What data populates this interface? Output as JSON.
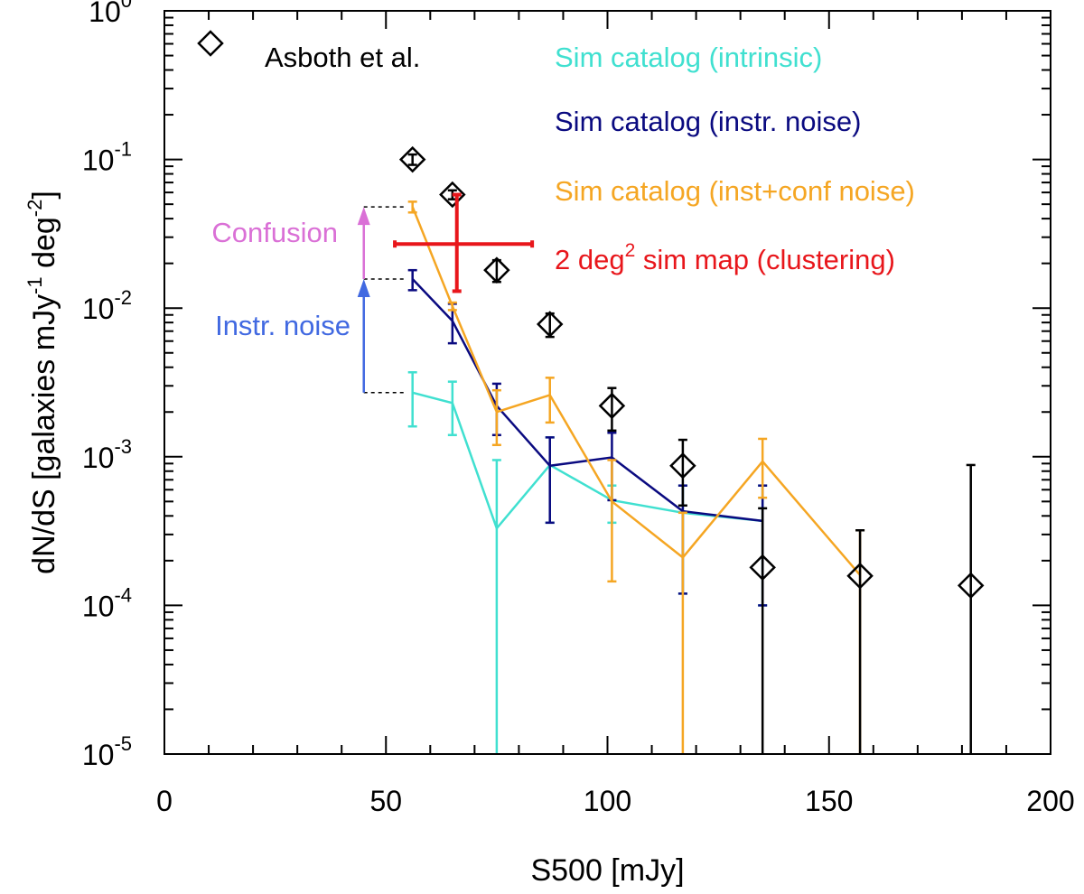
{
  "chart_data": {
    "type": "line",
    "xlabel": "S500 [mJy]",
    "ylabel": {
      "main": "dN/dS [galaxies mJy",
      "exp1": "-1",
      "mid": " deg",
      "exp2": "-2",
      "end": "]"
    },
    "xlim": [
      0,
      200
    ],
    "ylim": [
      1e-05,
      1
    ],
    "yscale": "log",
    "xticks": [
      0,
      50,
      100,
      150,
      200
    ],
    "xtick_labels": [
      "0",
      "50",
      "100",
      "150",
      "200"
    ],
    "yticks": [
      {
        "value": 1,
        "base": "10",
        "exp": "0"
      },
      {
        "value": 0.1,
        "base": "10",
        "exp": "-1"
      },
      {
        "value": 0.01,
        "base": "10",
        "exp": "-2"
      },
      {
        "value": 0.001,
        "base": "10",
        "exp": "-3"
      },
      {
        "value": 0.0001,
        "base": "10",
        "exp": "-4"
      },
      {
        "value": 1e-05,
        "base": "10",
        "exp": "-5"
      }
    ],
    "series": [
      {
        "name": "Sim catalog (intrinsic)",
        "color": "#40E0D0",
        "points": [
          {
            "x": 56,
            "y": 0.0027,
            "lo": 0.0016,
            "hi": 0.0037
          },
          {
            "x": 65,
            "y": 0.0023,
            "lo": 0.0014,
            "hi": 0.0032
          },
          {
            "x": 75,
            "y": 0.00033,
            "lo": 1e-05,
            "hi": 0.00095
          },
          {
            "x": 87,
            "y": 0.00088,
            "lo": 0.00036,
            "hi": 0.00135
          },
          {
            "x": 101,
            "y": 0.00051,
            "lo": 0.00036,
            "hi": 0.00064
          },
          {
            "x": 117,
            "y": 0.00042,
            "lo": 0.00012,
            "hi": 0.00064
          },
          {
            "x": 135,
            "y": 0.00037,
            "lo": 0.0001,
            "hi": 0.00064
          }
        ]
      },
      {
        "name": "Sim catalog (instr. noise)",
        "color": "#0A0A80",
        "points": [
          {
            "x": 56,
            "y": 0.0157,
            "lo": 0.0132,
            "hi": 0.018
          },
          {
            "x": 65,
            "y": 0.0082,
            "lo": 0.0058,
            "hi": 0.0107
          },
          {
            "x": 75,
            "y": 0.0022,
            "lo": 0.0014,
            "hi": 0.0031
          },
          {
            "x": 87,
            "y": 0.00087,
            "lo": 0.00036,
            "hi": 0.00135
          },
          {
            "x": 101,
            "y": 0.00099,
            "lo": 0.00051,
            "hi": 0.00145
          },
          {
            "x": 117,
            "y": 0.00043,
            "lo": 0.00012,
            "hi": 0.00064
          },
          {
            "x": 135,
            "y": 0.00037,
            "lo": 0.0001,
            "hi": 0.00064
          }
        ]
      },
      {
        "name": "Sim catalog (inst+conf noise)",
        "color": "#F5A623",
        "points": [
          {
            "x": 56,
            "y": 0.048,
            "lo": 0.044,
            "hi": 0.052
          },
          {
            "x": 65,
            "y": 0.0103,
            "lo": 0.0097,
            "hi": 0.0109
          },
          {
            "x": 75,
            "y": 0.002,
            "lo": 0.0012,
            "hi": 0.0028
          },
          {
            "x": 87,
            "y": 0.0026,
            "lo": 0.0017,
            "hi": 0.0034
          },
          {
            "x": 101,
            "y": 0.0005,
            "lo": 0.000145,
            "hi": 0.00095
          },
          {
            "x": 117,
            "y": 0.00021,
            "lo": 1e-05,
            "hi": 0.00042
          },
          {
            "x": 135,
            "y": 0.00093,
            "lo": 0.00053,
            "hi": 0.00132
          },
          {
            "x": 157,
            "y": 0.00016,
            "lo": 1e-05,
            "hi": 0.00032
          }
        ]
      },
      {
        "name": "Asboth et al.",
        "color": "#000000",
        "marker": "diamond",
        "points": [
          {
            "x": 56,
            "y": 0.1,
            "lo": 0.092,
            "hi": 0.108
          },
          {
            "x": 65,
            "y": 0.058,
            "lo": 0.054,
            "hi": 0.062
          },
          {
            "x": 75,
            "y": 0.018,
            "lo": 0.015,
            "hi": 0.021
          },
          {
            "x": 87,
            "y": 0.0078,
            "lo": 0.0064,
            "hi": 0.0092
          },
          {
            "x": 101,
            "y": 0.0022,
            "lo": 0.0015,
            "hi": 0.0029
          },
          {
            "x": 117,
            "y": 0.00087,
            "lo": 0.00047,
            "hi": 0.0013
          },
          {
            "x": 135,
            "y": 0.00018,
            "lo": 1e-05,
            "hi": 0.00045
          },
          {
            "x": 157,
            "y": 0.000158,
            "lo": 1e-05,
            "hi": 0.00032
          },
          {
            "x": 182,
            "y": 0.000136,
            "lo": 1e-05,
            "hi": 0.00088
          }
        ]
      },
      {
        "name": "2 deg² sim map (clustering)",
        "color": "#E8161B",
        "points": [
          {
            "x": 66,
            "y": 0.027,
            "xlo": 52,
            "xhi": 83,
            "lo": 0.013,
            "hi": 0.058
          }
        ]
      }
    ],
    "legend": {
      "asboth": "Asboth et al.",
      "intrinsic": "Sim catalog (intrinsic)",
      "instr": "Sim catalog (instr. noise)",
      "instconf": "Sim catalog (inst+conf noise)",
      "clust_pre": "2 deg",
      "clust_sup": "2",
      "clust_post": " sim map (clustering)"
    },
    "annotations": {
      "confusion": {
        "text": "Confusion",
        "color": "#DA70D6",
        "from_y": 0.0157,
        "to_y": 0.048
      },
      "instr_noise": {
        "text": "Instr. noise",
        "color": "#4169E1",
        "from_y": 0.0027,
        "to_y": 0.0157
      },
      "arrow_x": 45
    }
  }
}
